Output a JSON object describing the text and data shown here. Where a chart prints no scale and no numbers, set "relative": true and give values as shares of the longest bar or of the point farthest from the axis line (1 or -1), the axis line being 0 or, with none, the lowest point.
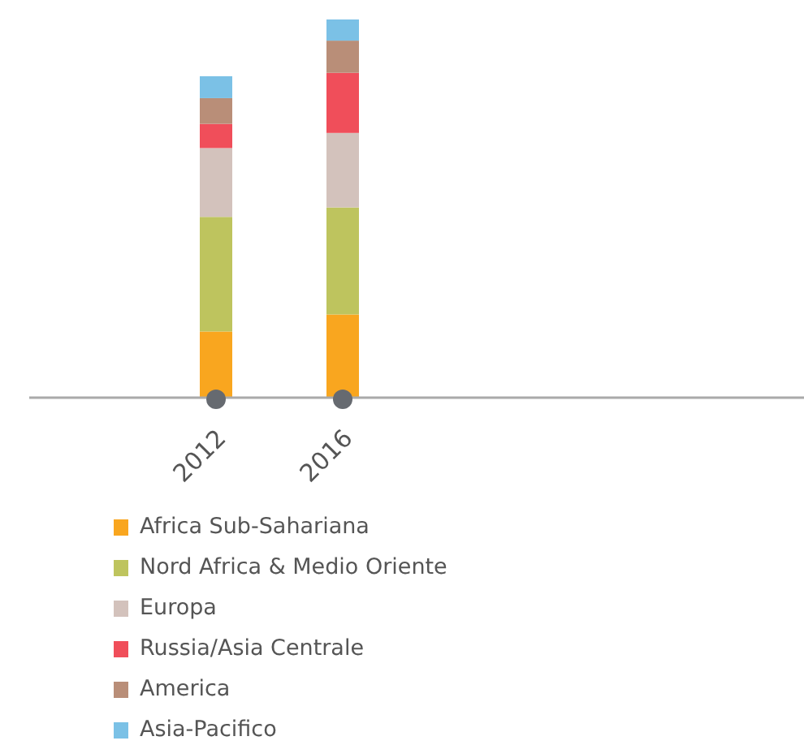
{
  "chart_data": {
    "type": "bar",
    "stacked": true,
    "relative": true,
    "categories": [
      "2012",
      "2016"
    ],
    "legend": "bottom",
    "series": [
      {
        "name": "Africa Sub-Sahariana",
        "color": "#f9a61f",
        "values": [
          0.175,
          0.22
        ]
      },
      {
        "name": "Nord Africa & Medio Oriente",
        "color": "#bec45e",
        "values": [
          0.303,
          0.283
        ]
      },
      {
        "name": "Europa",
        "color": "#d3c2bc",
        "values": [
          0.182,
          0.197
        ]
      },
      {
        "name": "Russia/Asia Centrale",
        "color": "#f04e5a",
        "values": [
          0.064,
          0.159
        ]
      },
      {
        "name": "America",
        "color": "#b98e78",
        "values": [
          0.068,
          0.085
        ]
      },
      {
        "name": "Asia-Pacifico",
        "color": "#7bc1e6",
        "values": [
          0.058,
          0.056
        ]
      }
    ]
  }
}
